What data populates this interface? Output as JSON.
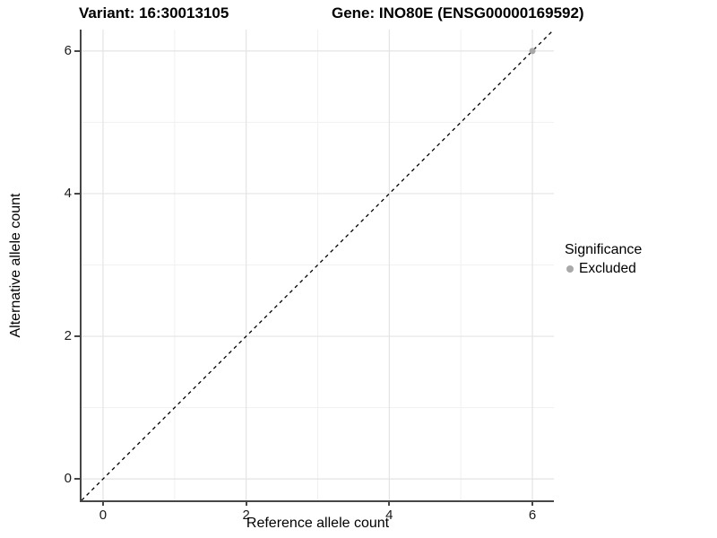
{
  "chart_data": {
    "type": "scatter",
    "title_left": "Variant: 16:30013105",
    "title_right": "Gene: INO80E (ENSG00000169592)",
    "xlabel": "Reference allele count",
    "ylabel": "Alternative allele count",
    "xlim": [
      -0.3,
      6.3
    ],
    "ylim": [
      -0.3,
      6.3
    ],
    "x_major_ticks": [
      0,
      2,
      4,
      6
    ],
    "y_major_ticks": [
      0,
      2,
      4,
      6
    ],
    "x_minor_ticks": [
      1,
      3,
      5
    ],
    "y_minor_ticks": [
      1,
      3,
      5
    ],
    "grid": "major+minor",
    "series": [
      {
        "name": "Excluded",
        "color": "#a9a9a9",
        "points": [
          {
            "x": 6,
            "y": 6
          }
        ]
      }
    ],
    "reference_line": {
      "equation": "y = x",
      "style": "dashed",
      "color": "#000000"
    },
    "legend": {
      "title": "Significance",
      "position": "right",
      "entries": [
        {
          "label": "Excluded",
          "color": "#a9a9a9"
        }
      ]
    },
    "colors": {
      "grid_major": "#e4e4e4",
      "grid_minor": "#f1f1f1",
      "axis": "#474747",
      "background": "#ffffff"
    }
  }
}
